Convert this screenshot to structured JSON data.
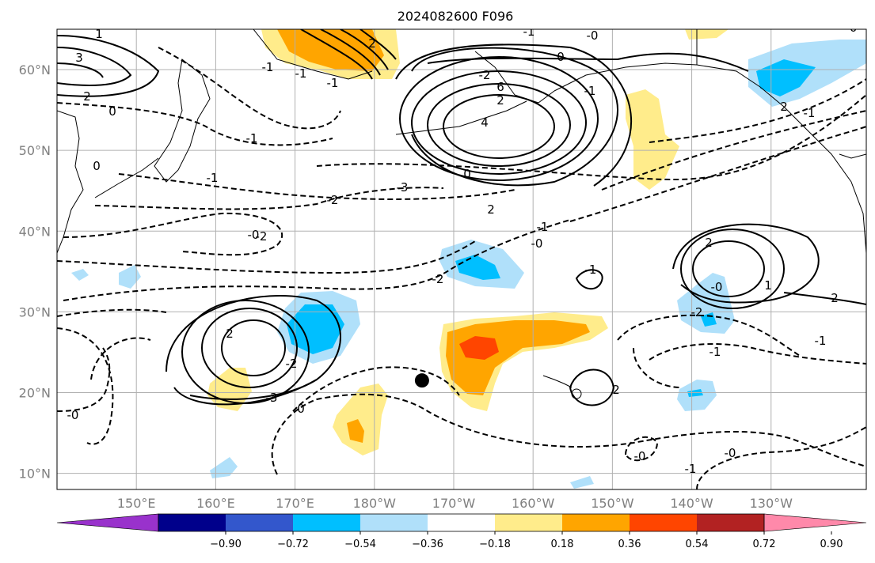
{
  "map": {
    "title": "2024082600 F096",
    "lat_labels": [
      "60°N",
      "50°N",
      "40°N",
      "30°N",
      "20°N",
      "10°N"
    ],
    "lon_labels": [
      "150°E",
      "160°E",
      "170°E",
      "180°W",
      "170°W",
      "160°W",
      "150°W",
      "140°W",
      "130°W"
    ],
    "extent": {
      "lon_min": 140,
      "lon_max": 242,
      "lat_min": 8,
      "lat_max": 65
    },
    "contour_labels": [
      "1",
      "3",
      "2",
      "0",
      "0",
      "-1",
      "-0",
      "-2",
      "-3",
      "-2",
      "-1",
      "-0",
      "-2",
      "2",
      "-2",
      "-3",
      "-1",
      "0",
      "-2",
      "2",
      "6",
      "4",
      "-0",
      "-1",
      "-1",
      "-0",
      "2",
      "-1",
      "2",
      "-0",
      "-2",
      "-1",
      "-1",
      "-0",
      "1",
      "2",
      "2",
      "-1",
      "-0",
      "0",
      "0",
      "2",
      "-1",
      "-0",
      "-1",
      "-1",
      "-1",
      "2"
    ],
    "colorbar": {
      "ticks": [
        "−0.90",
        "−0.72",
        "−0.54",
        "−0.36",
        "−0.18",
        "0.18",
        "0.36",
        "0.54",
        "0.72",
        "0.90"
      ],
      "colors": [
        "#9932cc",
        "#00008b",
        "#3357cc",
        "#00bfff",
        "#b0e0fa",
        "#ffffff",
        "#ffec8b",
        "#ffa500",
        "#ff4500",
        "#b22222",
        "#ff89aa"
      ]
    },
    "marker": {
      "lon": 186,
      "lat": 21.5
    }
  }
}
